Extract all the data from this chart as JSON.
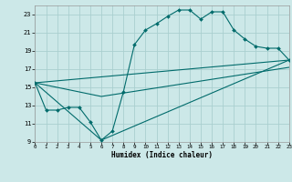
{
  "bg_color": "#cce8e8",
  "grid_color": "#aacfcf",
  "line_color": "#006b6b",
  "main_x": [
    0,
    1,
    2,
    3,
    4,
    5,
    6,
    7,
    8,
    9,
    10,
    11,
    12,
    13,
    14,
    15,
    16,
    17,
    18,
    19,
    20,
    21,
    22,
    23
  ],
  "main_y": [
    15.5,
    12.5,
    12.5,
    12.8,
    12.8,
    11.2,
    9.2,
    10.2,
    14.5,
    19.7,
    21.3,
    22.0,
    22.8,
    23.5,
    23.5,
    22.5,
    23.3,
    23.3,
    21.3,
    20.3,
    19.5,
    19.3,
    19.3,
    18.0
  ],
  "line2_x": [
    0,
    23
  ],
  "line2_y": [
    15.5,
    18.0
  ],
  "line3_x": [
    0,
    6,
    23
  ],
  "line3_y": [
    15.5,
    9.2,
    18.0
  ],
  "line4_x": [
    0,
    6,
    23
  ],
  "line4_y": [
    15.5,
    14.0,
    17.2
  ],
  "xlim": [
    0,
    23
  ],
  "ylim": [
    9,
    24
  ],
  "yticks": [
    9,
    11,
    13,
    15,
    17,
    19,
    21,
    23
  ],
  "xticks": [
    0,
    1,
    2,
    3,
    4,
    5,
    6,
    7,
    8,
    9,
    10,
    11,
    12,
    13,
    14,
    15,
    16,
    17,
    18,
    19,
    20,
    21,
    22,
    23
  ],
  "xlabel": "Humidex (Indice chaleur)"
}
